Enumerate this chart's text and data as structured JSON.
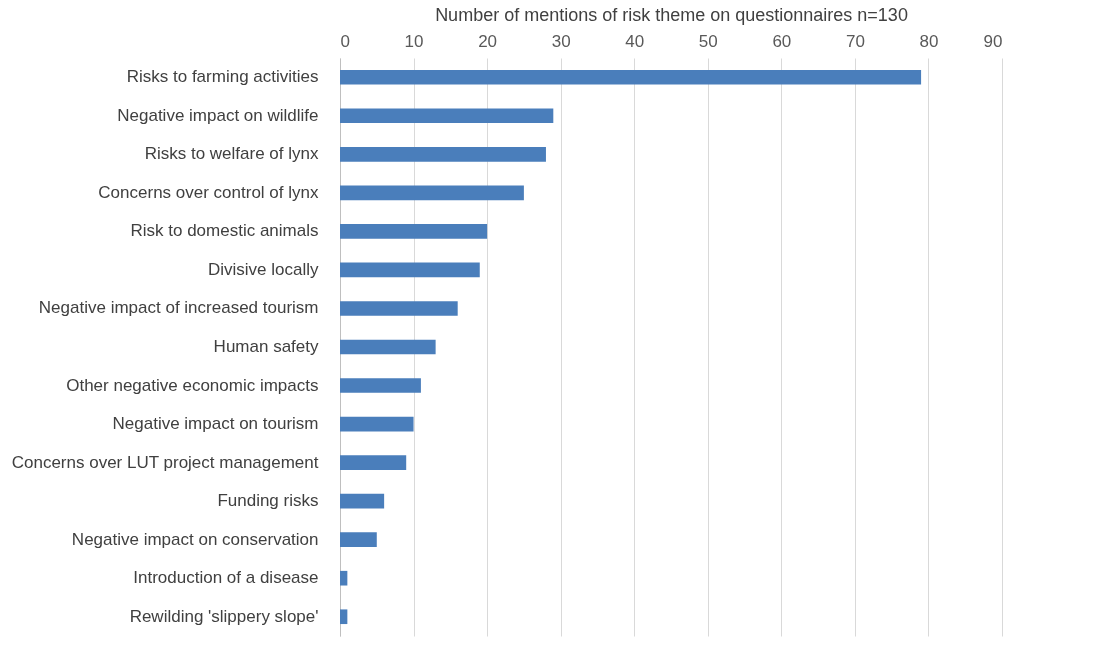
{
  "chart_data": {
    "type": "bar",
    "orientation": "horizontal",
    "xlabel": "Number of mentions of risk theme on questionnaires n=130",
    "categories": [
      "Risks to farming activities",
      "Negative impact on wildlife",
      "Risks to welfare of lynx",
      "Concerns over control of lynx",
      "Risk to domestic animals",
      "Divisive locally",
      "Negative impact of increased tourism",
      "Human safety",
      "Other negative economic impacts",
      "Negative impact on tourism",
      "Concerns over LUT project management",
      "Funding risks",
      "Negative impact on conservation",
      "Introduction of a disease",
      "Rewilding 'slippery slope'"
    ],
    "values": [
      79,
      29,
      28,
      25,
      20,
      19,
      16,
      13,
      11,
      10,
      9,
      6,
      5,
      1,
      1
    ],
    "color": "#4a7ebb",
    "xlim": [
      0,
      90
    ],
    "xticks": [
      0,
      10,
      20,
      30,
      40,
      50,
      60,
      70,
      80,
      90
    ],
    "grid": "x"
  }
}
